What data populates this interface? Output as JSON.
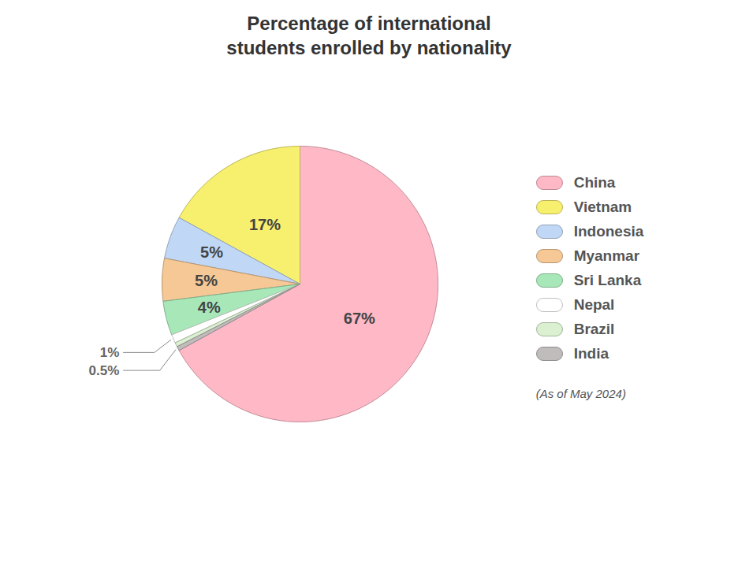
{
  "chart_data": {
    "type": "pie",
    "title": "Percentage of international\nstudents enrolled by nationality",
    "subtitle": "(As of May 2024)",
    "categories": [
      "China",
      "Vietnam",
      "Indonesia",
      "Myanmar",
      "Sri Lanka",
      "Nepal",
      "Brazil",
      "India"
    ],
    "values": [
      67,
      17,
      5,
      5,
      4,
      1,
      0.5,
      0.5
    ],
    "colors": [
      "#ffb8c6",
      "#f7f06e",
      "#c0d8f5",
      "#f5c896",
      "#a8e8b8",
      "#ffffff",
      "#daf0d0",
      "#c0bcbc"
    ],
    "data_labels": true,
    "value_labels": [
      "67%",
      "17%",
      "5%",
      "5%",
      "4%",
      "1%",
      null,
      "0.5%"
    ],
    "legend": "right"
  }
}
